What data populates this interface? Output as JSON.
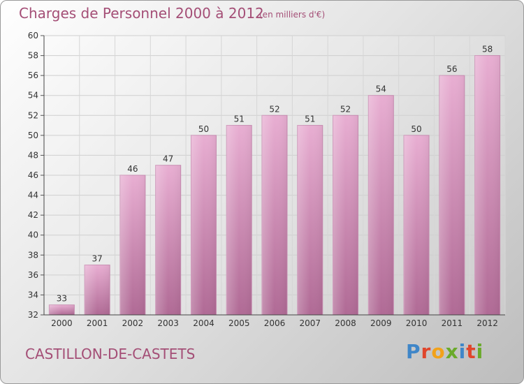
{
  "header": {
    "title": "Charges de Personnel 2000 à 2012",
    "subtitle": "(en milliers d'€)"
  },
  "footer": {
    "city": "CASTILLON-DE-CASTETS",
    "brand": "Proxiti"
  },
  "colors": {
    "text_accent": "#a44e76",
    "bar_top": "#e8aed2",
    "bar_bottom": "#b06a95",
    "brand_letters": [
      "#3f86c8",
      "#e0462c",
      "#f2a21a",
      "#6aaa2a",
      "#3f86c8",
      "#e0462c",
      "#6aaa2a"
    ]
  },
  "chart_data": {
    "type": "bar",
    "title": "Charges de Personnel 2000 à 2012",
    "subtitle": "(en milliers d'€)",
    "categories": [
      "2000",
      "2001",
      "2002",
      "2003",
      "2004",
      "2005",
      "2006",
      "2007",
      "2008",
      "2009",
      "2010",
      "2011",
      "2012"
    ],
    "values": [
      33,
      37,
      46,
      47,
      50,
      51,
      52,
      51,
      52,
      54,
      50,
      56,
      58
    ],
    "ylim": [
      32,
      60
    ],
    "yticks": [
      32,
      34,
      36,
      38,
      40,
      42,
      44,
      46,
      48,
      50,
      52,
      54,
      56,
      58,
      60
    ],
    "grid": true
  }
}
